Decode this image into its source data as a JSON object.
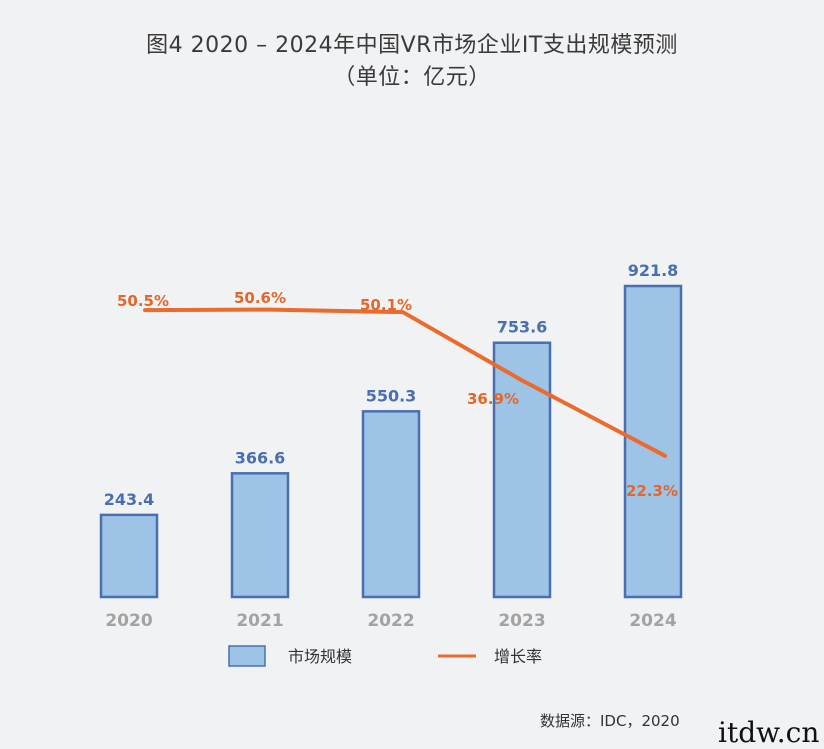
{
  "chart_data": {
    "type": "bar",
    "title": "图4 2020 – 2024年中国VR市场企业IT支出规模预测",
    "subtitle": "（单位：亿元）",
    "categories": [
      "2020",
      "2021",
      "2022",
      "2023",
      "2024"
    ],
    "series": [
      {
        "name": "市场规模",
        "type": "bar",
        "values": [
          243.4,
          366.6,
          550.3,
          753.6,
          921.8
        ],
        "labels": [
          "243.4",
          "366.6",
          "550.3",
          "753.6",
          "921.8"
        ]
      },
      {
        "name": "增长率",
        "type": "line",
        "values": [
          50.5,
          50.6,
          50.1,
          36.9,
          22.3
        ],
        "labels": [
          "50.5%",
          "50.6%",
          "50.1%",
          "36.9%",
          "22.3%"
        ]
      }
    ],
    "grid": false,
    "legend_position": "bottom",
    "colors": {
      "bar_fill": "#9dc3e6",
      "bar_stroke": "#4a6fb0",
      "bar_label": "#4a6fb0",
      "line": "#ec6a2c",
      "line_label": "#e4672a",
      "axis_label": "#a3a3a3"
    }
  },
  "source": "数据源：IDC，2020",
  "watermark": "itdw.cn"
}
